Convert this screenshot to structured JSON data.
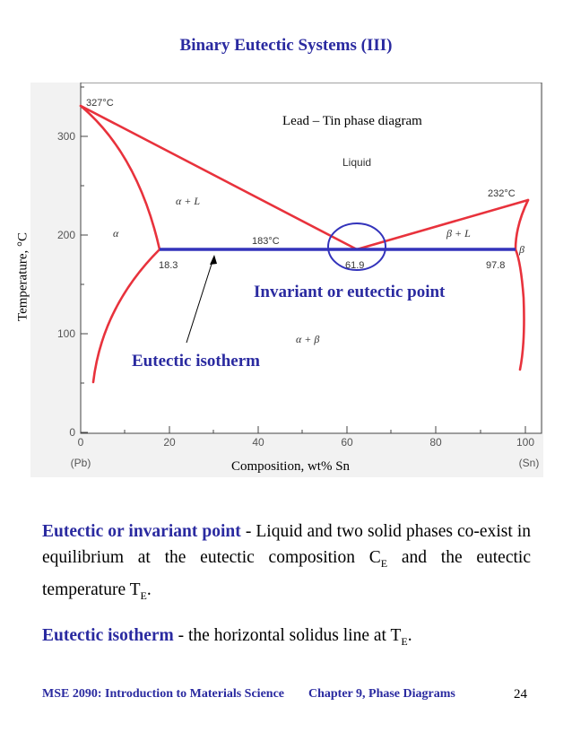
{
  "title": "Binary Eutectic Systems (III)",
  "diagram": {
    "caption": "Lead – Tin phase diagram",
    "y_axis_label": "Temperature, °C",
    "x_axis_label": "Composition, wt% Sn",
    "y_ticks": [
      "0",
      "100",
      "200",
      "300"
    ],
    "x_ticks": [
      "0",
      "20",
      "40",
      "60",
      "80",
      "100"
    ],
    "x_end_labels": [
      "(Pb)",
      "(Sn)"
    ],
    "temp_labels": [
      "327°C",
      "232°C",
      "183°C"
    ],
    "composition_labels": [
      "18.3",
      "61.9",
      "97.8"
    ],
    "phase_labels": [
      "Liquid",
      "α + L",
      "β + L",
      "α",
      "β",
      "α + β"
    ],
    "annotation_invariant": "Invariant or eutectic point",
    "annotation_isotherm": "Eutectic isotherm",
    "colors": {
      "phase_lines": "#e8323c",
      "isotherm": "#3333bb",
      "annotation": "#2a2aa0"
    }
  },
  "paragraph1": {
    "term": "Eutectic or invariant point",
    "text_a": " - Liquid and two solid phases co-exist in equilibrium at the eutectic composition C",
    "sub_a": "E",
    "text_b": " and the eutectic temperature T",
    "sub_b": "E",
    "text_c": "."
  },
  "paragraph2": {
    "term": "Eutectic isotherm",
    "text_a": " - the horizontal solidus line at T",
    "sub_a": "E",
    "text_b": "."
  },
  "footer": {
    "course": "MSE 2090: Introduction to Materials Science",
    "chapter": "Chapter 9, Phase Diagrams",
    "page": "24"
  }
}
